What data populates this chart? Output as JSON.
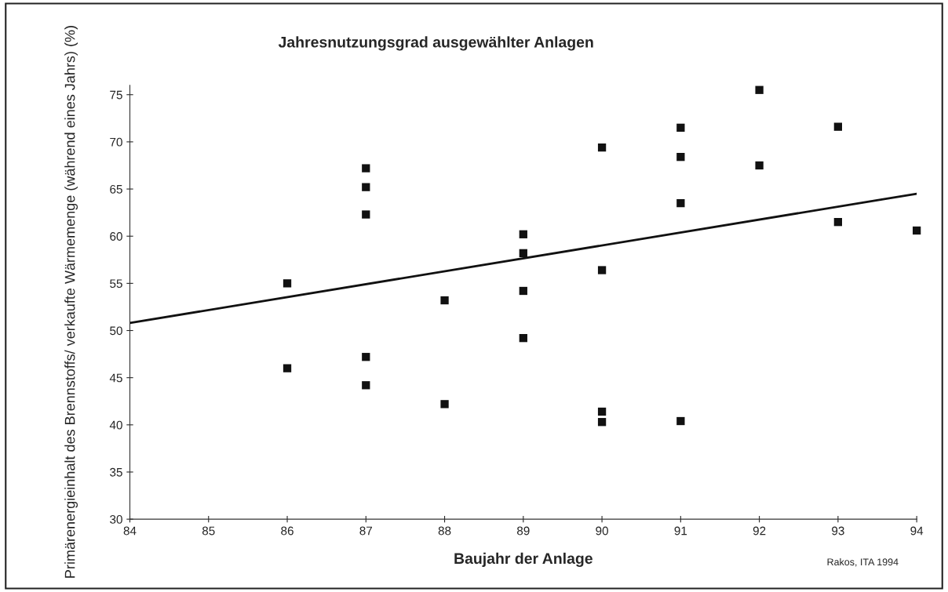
{
  "chart_data": {
    "type": "scatter",
    "title": "Jahresnutzungsgrad ausgewählter Anlagen",
    "xlabel": "Baujahr der Anlage",
    "ylabel": "Primärenergieinhalt des Brennstoffs/ verkaufte Wärmemenge (während eines Jahrs) (%)",
    "annotations": [
      "Rakos, ITA 1994"
    ],
    "xlim": [
      84,
      94
    ],
    "xticks": [
      84,
      85,
      86,
      87,
      88,
      89,
      90,
      91,
      92,
      93,
      94
    ],
    "ylim": [
      30,
      76
    ],
    "yticks": [
      30,
      35,
      40,
      45,
      50,
      55,
      60,
      65,
      70,
      75
    ],
    "grid": false,
    "legend": false,
    "series": [
      {
        "marker": "square",
        "color": "#111111",
        "x": [
          86,
          86,
          87,
          87,
          87,
          87,
          87,
          88,
          88,
          89,
          89,
          89,
          89,
          90,
          90,
          90,
          90,
          91,
          91,
          91,
          91,
          92,
          92,
          93,
          93,
          94
        ],
        "values": [
          55.0,
          46.0,
          67.2,
          65.2,
          62.3,
          47.2,
          44.2,
          53.2,
          42.2,
          60.2,
          58.2,
          54.2,
          49.2,
          69.4,
          56.4,
          41.4,
          40.3,
          71.5,
          68.4,
          63.5,
          40.4,
          75.5,
          67.5,
          71.6,
          61.5,
          60.6
        ]
      },
      {
        "type": "line",
        "color": "#111111",
        "x": [
          84,
          94
        ],
        "values": [
          50.8,
          64.5
        ]
      }
    ]
  }
}
